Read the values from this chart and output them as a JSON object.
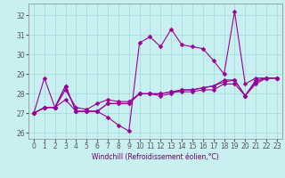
{
  "xlabel": "Windchill (Refroidissement éolien,°C)",
  "ylabel": "",
  "background_color": "#c8f0f0",
  "grid_color": "#a0d8d8",
  "line_color": "#990099",
  "xlim": [
    -0.5,
    23.5
  ],
  "ylim": [
    25.7,
    32.6
  ],
  "yticks": [
    26,
    27,
    28,
    29,
    30,
    31,
    32
  ],
  "xticks": [
    0,
    1,
    2,
    3,
    4,
    5,
    6,
    7,
    8,
    9,
    10,
    11,
    12,
    13,
    14,
    15,
    16,
    17,
    18,
    19,
    20,
    21,
    22,
    23
  ],
  "lines": [
    [
      27.0,
      28.8,
      27.3,
      27.7,
      27.1,
      27.1,
      27.1,
      26.8,
      26.4,
      26.1,
      30.6,
      30.9,
      30.4,
      31.3,
      30.5,
      30.4,
      30.3,
      29.7,
      29.0,
      32.2,
      28.5,
      28.8,
      28.8,
      28.8
    ],
    [
      27.0,
      27.3,
      27.3,
      28.2,
      27.3,
      27.2,
      27.5,
      27.7,
      27.6,
      27.6,
      28.0,
      28.0,
      27.9,
      28.0,
      28.2,
      28.2,
      28.3,
      28.4,
      28.7,
      28.7,
      27.9,
      28.6,
      28.8,
      28.8
    ],
    [
      27.0,
      27.3,
      27.3,
      28.4,
      27.1,
      27.1,
      27.1,
      27.5,
      27.5,
      27.5,
      28.0,
      28.0,
      28.0,
      28.1,
      28.1,
      28.1,
      28.2,
      28.2,
      28.5,
      28.5,
      27.9,
      28.5,
      28.8,
      28.8
    ],
    [
      27.0,
      27.3,
      27.3,
      28.4,
      27.1,
      27.1,
      27.1,
      27.5,
      27.5,
      27.5,
      28.0,
      28.0,
      28.0,
      28.1,
      28.2,
      28.2,
      28.3,
      28.4,
      28.6,
      28.7,
      27.9,
      28.7,
      28.8,
      28.8
    ]
  ],
  "marker": "D",
  "markersize": 2.5,
  "linewidth": 0.8,
  "tick_labelsize": 5.5,
  "xlabel_fontsize": 5.5
}
